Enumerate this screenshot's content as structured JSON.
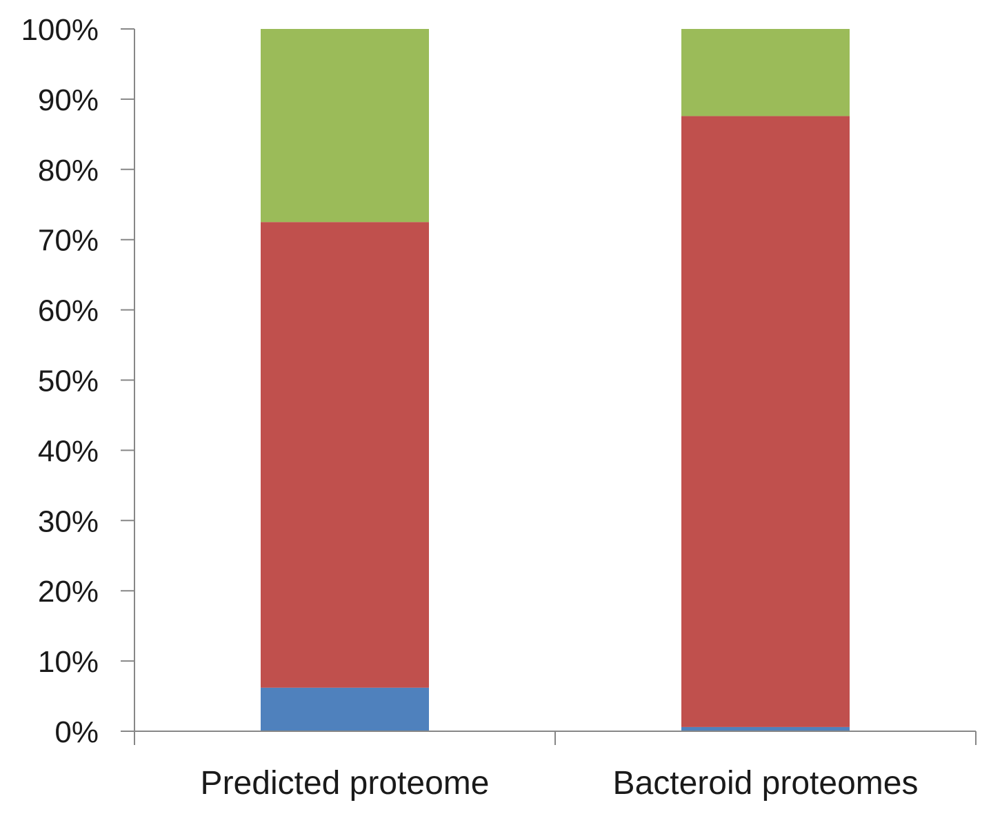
{
  "chart_data": {
    "type": "bar",
    "stacked": true,
    "title": "",
    "xlabel": "",
    "ylabel": "",
    "categories": [
      "Predicted proteome",
      "Bacteroid proteomes"
    ],
    "series": [
      {
        "values": [
          6.2,
          0.6
        ],
        "color": "#4f81bd"
      },
      {
        "values": [
          66.3,
          87.0
        ],
        "color": "#c0504d"
      },
      {
        "values": [
          27.5,
          12.4
        ],
        "color": "#9bbb59"
      }
    ],
    "ylim": [
      0,
      100
    ],
    "y_ticks": [
      "0%",
      "10%",
      "20%",
      "30%",
      "40%",
      "50%",
      "60%",
      "70%",
      "80%",
      "90%",
      "100%"
    ],
    "grid": false,
    "legend": "none",
    "axis_color": "#868686"
  }
}
